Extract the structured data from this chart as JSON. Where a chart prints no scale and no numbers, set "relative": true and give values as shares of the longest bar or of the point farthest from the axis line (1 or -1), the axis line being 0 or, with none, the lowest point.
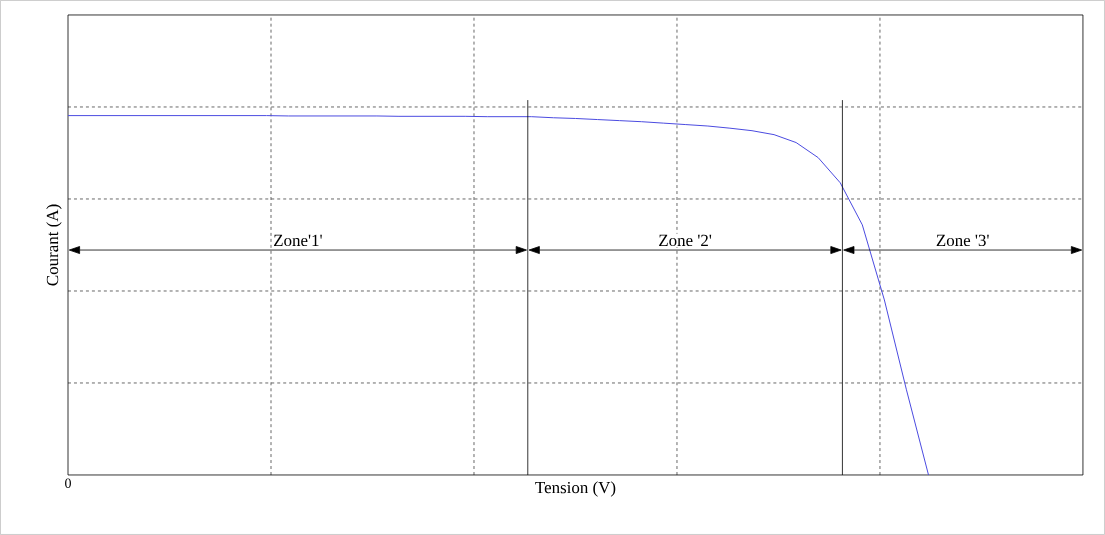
{
  "chart_data": {
    "type": "line",
    "relative": true,
    "xlabel": "Tension (V)",
    "ylabel": "Courant (A)",
    "categories": [
      null,
      null,
      null,
      null,
      null,
      null,
      null,
      null,
      null,
      null,
      null,
      null,
      null,
      null,
      null,
      null,
      null,
      null,
      null,
      null,
      null,
      null,
      null,
      null,
      null,
      null,
      null,
      null,
      null,
      null,
      null,
      null,
      null,
      null,
      null,
      null,
      null,
      null,
      null,
      null,
      null,
      null,
      null,
      null,
      null,
      null,
      null
    ],
    "series": [
      {
        "color": "#4a4ae0",
        "values": [
          1.0,
          1.0,
          1.0,
          1.0,
          1.0,
          1.0,
          1.0,
          1.0,
          1.0,
          1.0,
          0.999,
          0.999,
          0.999,
          0.999,
          0.999,
          0.998,
          0.998,
          0.998,
          0.998,
          0.997,
          0.997,
          0.997,
          0.994,
          0.992,
          0.989,
          0.986,
          0.983,
          0.979,
          0.975,
          0.971,
          0.965,
          0.958,
          0.947,
          0.925,
          0.883,
          0.813,
          0.696,
          0.487,
          0.237,
          0.0,
          null,
          null,
          null,
          null,
          null,
          null,
          null
        ]
      }
    ],
    "annotations": [
      "Zone'1'",
      "Zone '2'",
      "Zone '3'",
      "0"
    ],
    "grid": true,
    "marker": "none",
    "line_style": "solid"
  }
}
